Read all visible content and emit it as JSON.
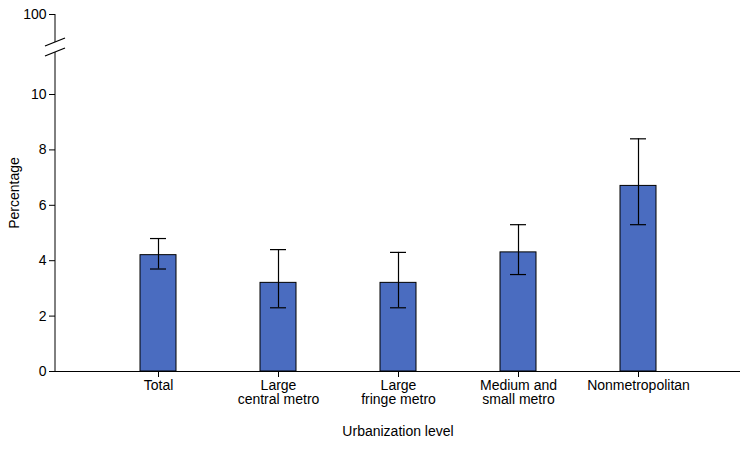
{
  "chart_data": {
    "type": "bar",
    "categories": [
      "Total",
      "Large\ncentral metro",
      "Large\nfringe metro",
      "Medium and\nsmall metro",
      "Nonmetropolitan"
    ],
    "values": [
      4.2,
      3.2,
      3.2,
      4.3,
      6.7
    ],
    "error_low": [
      3.7,
      2.3,
      2.3,
      3.5,
      5.3
    ],
    "error_high": [
      4.8,
      4.4,
      4.3,
      5.3,
      8.4
    ],
    "color": "#4a6cc0",
    "x_label": "Urbanization level",
    "y_label": "Percentage",
    "ylim": [
      0,
      100
    ],
    "yticks": [
      0,
      2,
      4,
      6,
      8,
      10,
      100
    ],
    "grid": false
  }
}
